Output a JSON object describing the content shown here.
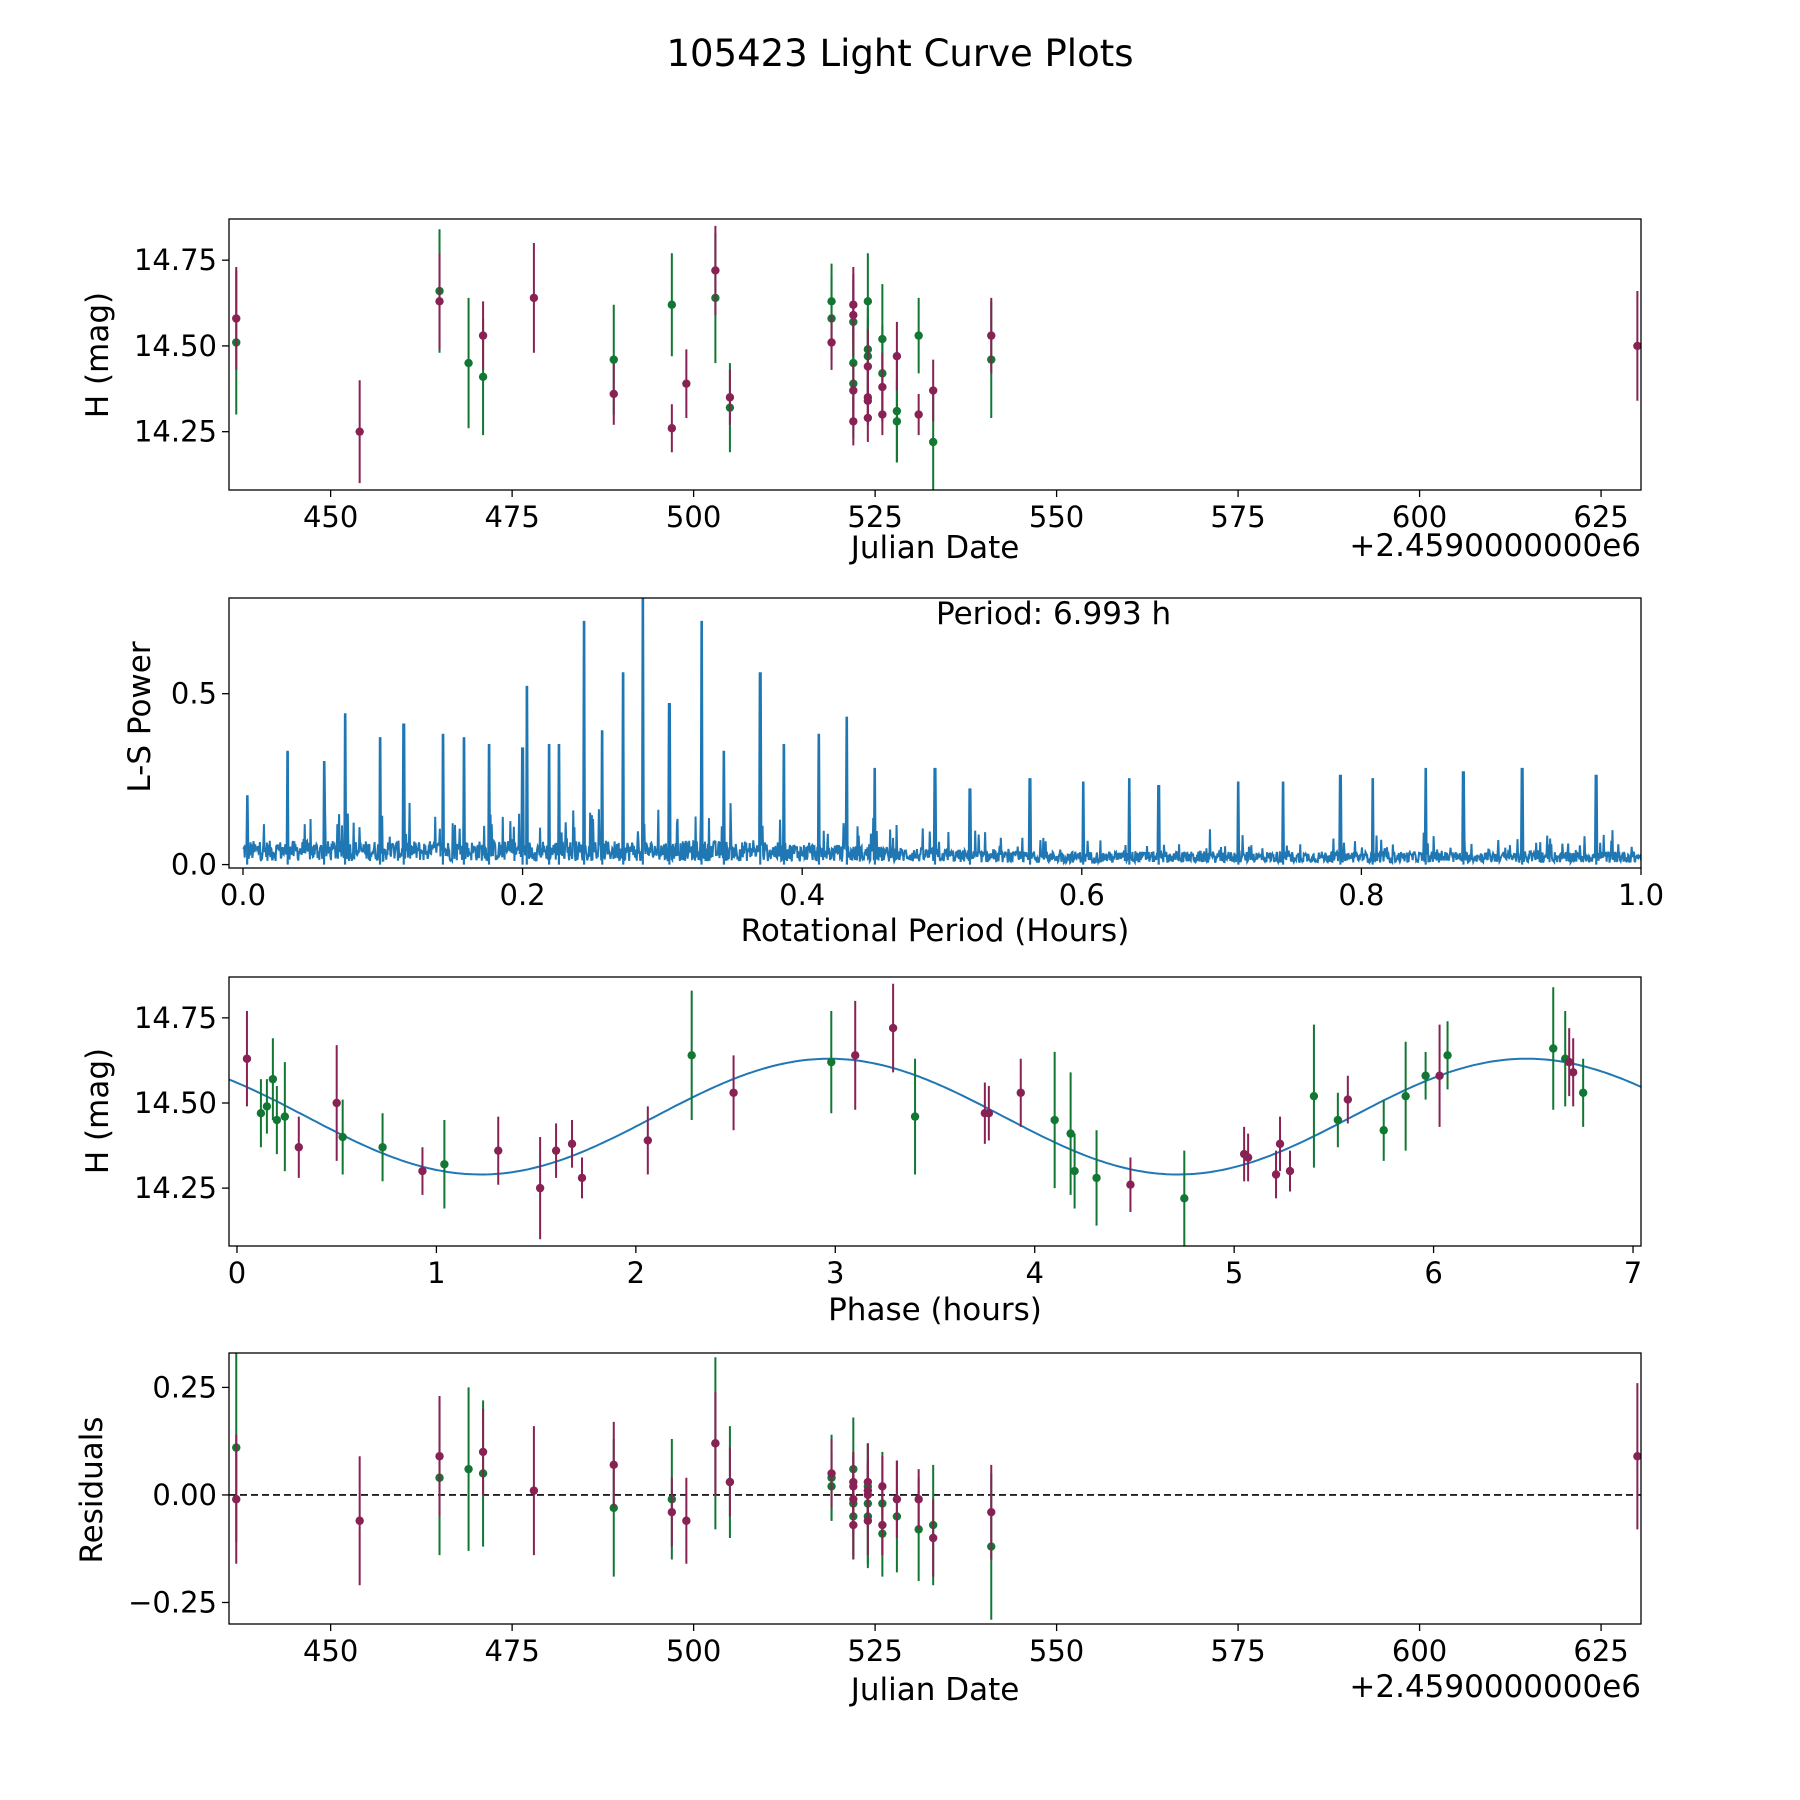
{
  "suptitle": "105423 Light Curve Plots",
  "colors": {
    "green": "#117733",
    "magenta": "#882255",
    "line": "#1f77b4",
    "axis": "#000000"
  },
  "chart_data": [
    {
      "id": "light-curve",
      "type": "scatter",
      "xlabel": "Julian Date",
      "ylabel": "H (mag)",
      "offset_label": "+2.4590000000e6",
      "xlim": [
        436,
        630.5
      ],
      "ylim": [
        14.08,
        14.87
      ],
      "xticks": [
        450,
        475,
        500,
        525,
        550,
        575,
        600,
        625
      ],
      "yticks": [
        14.25,
        14.5,
        14.75
      ],
      "ytick_labels": [
        "14.25",
        "14.50",
        "14.75"
      ],
      "series": [
        {
          "name": "green",
          "color": "#117733",
          "x": [
            437,
            465,
            469,
            471,
            489,
            497,
            503,
            505,
            519,
            519,
            522,
            522,
            522,
            524,
            524,
            524,
            526,
            526,
            528,
            528,
            531,
            533,
            541
          ],
          "y": [
            14.51,
            14.66,
            14.45,
            14.41,
            14.46,
            14.62,
            14.64,
            14.32,
            14.58,
            14.63,
            14.57,
            14.45,
            14.39,
            14.63,
            14.49,
            14.47,
            14.52,
            14.42,
            14.31,
            14.28,
            14.53,
            14.22,
            14.46
          ],
          "err": [
            0.21,
            0.18,
            0.19,
            0.17,
            0.16,
            0.15,
            0.19,
            0.13,
            0.12,
            0.11,
            0.12,
            0.14,
            0.16,
            0.14,
            0.12,
            0.11,
            0.16,
            0.14,
            0.15,
            0.12,
            0.11,
            0.14,
            0.17
          ]
        },
        {
          "name": "magenta",
          "color": "#882255",
          "x": [
            437,
            454,
            465,
            471,
            478,
            489,
            497,
            499,
            503,
            505,
            519,
            522,
            522,
            522,
            522,
            524,
            524,
            524,
            524,
            526,
            526,
            528,
            531,
            533,
            541,
            630
          ],
          "y": [
            14.58,
            14.25,
            14.63,
            14.53,
            14.64,
            14.36,
            14.26,
            14.39,
            14.72,
            14.35,
            14.51,
            14.62,
            14.59,
            14.37,
            14.28,
            14.44,
            14.35,
            14.34,
            14.29,
            14.38,
            14.3,
            14.47,
            14.3,
            14.37,
            14.53,
            14.5
          ],
          "err": [
            0.15,
            0.15,
            0.14,
            0.1,
            0.16,
            0.09,
            0.07,
            0.1,
            0.13,
            0.08,
            0.08,
            0.11,
            0.12,
            0.08,
            0.07,
            0.11,
            0.08,
            0.06,
            0.07,
            0.1,
            0.06,
            0.1,
            0.06,
            0.09,
            0.11,
            0.16
          ]
        }
      ]
    },
    {
      "id": "periodogram",
      "type": "line",
      "xlabel": "Rotational Period (Hours)",
      "ylabel": "L-S Power",
      "annotation": "Period: 6.993 h",
      "xlim": [
        -0.01,
        1.0
      ],
      "ylim": [
        -0.01,
        0.78
      ],
      "xticks": [
        0.0,
        0.2,
        0.4,
        0.6,
        0.8,
        1.0
      ],
      "xtick_labels": [
        "0.0",
        "0.2",
        "0.4",
        "0.6",
        "0.8",
        "1.0"
      ],
      "yticks": [
        0.0,
        0.5
      ],
      "ytick_labels": [
        "0.0",
        "0.5"
      ],
      "peaks": {
        "x": [
          0.003,
          0.032,
          0.058,
          0.073,
          0.098,
          0.115,
          0.143,
          0.158,
          0.176,
          0.2,
          0.203,
          0.219,
          0.226,
          0.244,
          0.257,
          0.272,
          0.286,
          0.305,
          0.328,
          0.344,
          0.37,
          0.387,
          0.412,
          0.432,
          0.452,
          0.495,
          0.52,
          0.563,
          0.601,
          0.634,
          0.655,
          0.712,
          0.744,
          0.785,
          0.808,
          0.846,
          0.873,
          0.915,
          0.968
        ],
        "y": [
          0.2,
          0.33,
          0.3,
          0.44,
          0.37,
          0.41,
          0.38,
          0.37,
          0.35,
          0.34,
          0.52,
          0.35,
          0.35,
          0.71,
          0.39,
          0.56,
          0.78,
          0.47,
          0.71,
          0.33,
          0.56,
          0.35,
          0.38,
          0.43,
          0.28,
          0.28,
          0.22,
          0.25,
          0.24,
          0.25,
          0.23,
          0.24,
          0.24,
          0.26,
          0.25,
          0.28,
          0.27,
          0.28,
          0.26
        ]
      }
    },
    {
      "id": "phase-fold",
      "type": "scatter",
      "xlabel": "Phase (hours)",
      "ylabel": "H (mag)",
      "xlim": [
        -0.04,
        7.04
      ],
      "ylim": [
        14.08,
        14.87
      ],
      "xticks": [
        0,
        1,
        2,
        3,
        4,
        5,
        6,
        7
      ],
      "yticks": [
        14.25,
        14.5,
        14.75
      ],
      "ytick_labels": [
        "14.25",
        "14.50",
        "14.75"
      ],
      "model": {
        "mean": 14.46,
        "amplitude": 0.17,
        "period_h": 3.4965,
        "phase_of_max": 2.97
      },
      "series": [
        {
          "name": "green",
          "color": "#117733",
          "x": [
            0.12,
            0.15,
            0.18,
            0.2,
            0.24,
            0.53,
            0.73,
            1.04,
            2.28,
            2.98,
            3.4,
            4.1,
            4.18,
            4.2,
            4.31,
            4.75,
            5.4,
            5.52,
            5.75,
            5.86,
            5.96,
            6.07,
            6.6,
            6.66,
            6.75
          ],
          "y": [
            14.47,
            14.49,
            14.57,
            14.45,
            14.46,
            14.4,
            14.37,
            14.32,
            14.64,
            14.62,
            14.46,
            14.45,
            14.41,
            14.3,
            14.28,
            14.22,
            14.52,
            14.45,
            14.42,
            14.52,
            14.58,
            14.64,
            14.66,
            14.63,
            14.53
          ],
          "err": [
            0.1,
            0.08,
            0.12,
            0.1,
            0.16,
            0.11,
            0.1,
            0.13,
            0.19,
            0.15,
            0.17,
            0.2,
            0.18,
            0.11,
            0.14,
            0.14,
            0.21,
            0.08,
            0.09,
            0.16,
            0.07,
            0.1,
            0.18,
            0.14,
            0.1
          ]
        },
        {
          "name": "magenta",
          "color": "#882255",
          "x": [
            0.05,
            0.31,
            0.5,
            0.93,
            1.31,
            1.52,
            1.6,
            1.68,
            1.73,
            2.06,
            2.49,
            3.1,
            3.29,
            3.75,
            3.77,
            3.93,
            4.48,
            5.05,
            5.07,
            5.21,
            5.23,
            5.28,
            5.57,
            6.03,
            6.68,
            6.7
          ],
          "y": [
            14.63,
            14.37,
            14.5,
            14.3,
            14.36,
            14.25,
            14.36,
            14.38,
            14.28,
            14.39,
            14.53,
            14.64,
            14.72,
            14.47,
            14.47,
            14.53,
            14.26,
            14.35,
            14.34,
            14.29,
            14.38,
            14.3,
            14.51,
            14.58,
            14.62,
            14.59
          ],
          "err": [
            0.14,
            0.09,
            0.17,
            0.07,
            0.1,
            0.15,
            0.08,
            0.07,
            0.06,
            0.1,
            0.11,
            0.16,
            0.13,
            0.09,
            0.08,
            0.1,
            0.08,
            0.08,
            0.07,
            0.07,
            0.08,
            0.06,
            0.07,
            0.15,
            0.1,
            0.1
          ]
        }
      ]
    },
    {
      "id": "residuals",
      "type": "scatter",
      "xlabel": "Julian Date",
      "ylabel": "Residuals",
      "offset_label": "+2.4590000000e6",
      "xlim": [
        436,
        630.5
      ],
      "ylim": [
        -0.3,
        0.33
      ],
      "xticks": [
        450,
        475,
        500,
        525,
        550,
        575,
        600,
        625
      ],
      "yticks": [
        -0.25,
        0.0,
        0.25
      ],
      "ytick_labels": [
        "−0.25",
        "0.00",
        "0.25"
      ],
      "zero_line": 0.0,
      "series": [
        {
          "name": "green",
          "color": "#117733",
          "x": [
            437,
            465,
            469,
            471,
            489,
            497,
            503,
            505,
            519,
            519,
            522,
            522,
            522,
            524,
            524,
            524,
            526,
            526,
            528,
            531,
            533,
            541
          ],
          "y": [
            0.11,
            0.04,
            0.06,
            0.05,
            -0.03,
            -0.01,
            0.12,
            0.03,
            0.02,
            0.04,
            0.06,
            -0.02,
            -0.05,
            -0.02,
            -0.05,
            0.02,
            -0.02,
            -0.09,
            -0.05,
            -0.08,
            -0.07,
            -0.12
          ],
          "err": [
            0.22,
            0.18,
            0.19,
            0.17,
            0.16,
            0.14,
            0.2,
            0.13,
            0.08,
            0.1,
            0.12,
            0.12,
            0.1,
            0.14,
            0.12,
            0.1,
            0.12,
            0.1,
            0.13,
            0.12,
            0.14,
            0.17
          ]
        },
        {
          "name": "magenta",
          "color": "#882255",
          "x": [
            437,
            454,
            465,
            471,
            478,
            489,
            497,
            499,
            503,
            505,
            519,
            522,
            522,
            522,
            522,
            524,
            524,
            524,
            524,
            526,
            526,
            528,
            531,
            533,
            541,
            630
          ],
          "y": [
            -0.01,
            -0.06,
            0.09,
            0.1,
            0.01,
            0.07,
            -0.04,
            -0.06,
            0.12,
            0.03,
            0.05,
            0.03,
            -0.01,
            -0.07,
            0.02,
            0.03,
            -0.06,
            0.0,
            0.01,
            0.02,
            -0.07,
            -0.01,
            -0.01,
            -0.1,
            -0.04,
            0.09
          ],
          "err": [
            0.15,
            0.15,
            0.14,
            0.1,
            0.15,
            0.1,
            0.08,
            0.1,
            0.12,
            0.08,
            0.08,
            0.07,
            0.08,
            0.08,
            0.07,
            0.09,
            0.08,
            0.07,
            0.07,
            0.07,
            0.07,
            0.09,
            0.07,
            0.09,
            0.11,
            0.17
          ]
        }
      ]
    }
  ]
}
